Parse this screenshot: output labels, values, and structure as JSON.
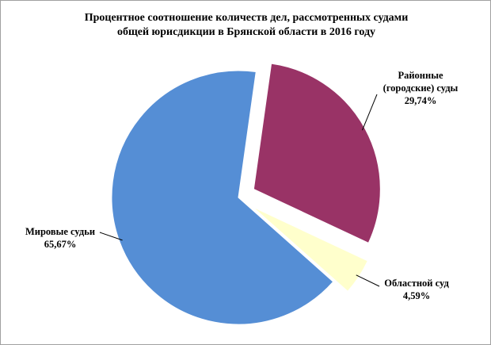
{
  "chart_data": {
    "type": "pie",
    "title": "Процентное соотношение количеств дел, рассмотренных судами общей юрисдикции в Брянской области в 2016 году",
    "categories": [
      "Районные (городские) суды",
      "Областной суд",
      "Мировые судьи"
    ],
    "values": [
      29.74,
      4.59,
      65.67
    ],
    "value_labels": [
      "29,74%",
      "4,59%",
      "65,67%"
    ],
    "colors": [
      "#993366",
      "#ffffcc",
      "#558ed5"
    ]
  }
}
